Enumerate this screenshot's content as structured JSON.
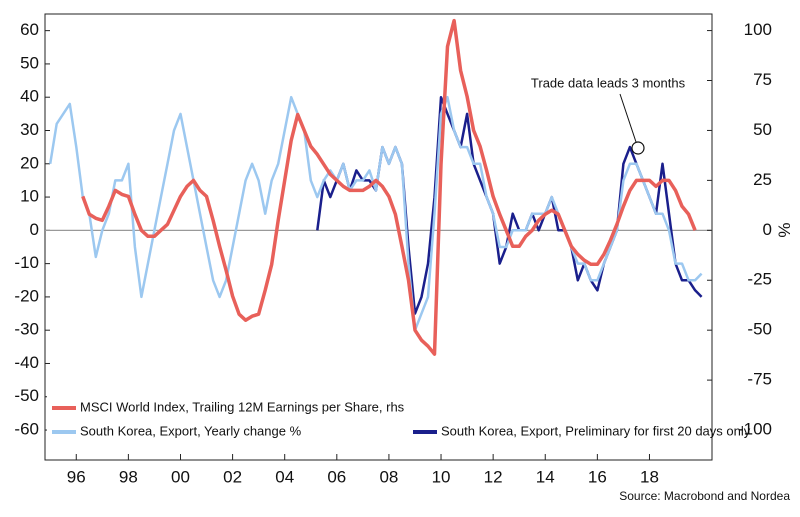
{
  "chart_data": {
    "type": "line",
    "annotation": "Trade data leads 3 months",
    "source": "Source: Macrobond and Nordea",
    "y2_label": "%",
    "legend": "bottom-left",
    "xlim": [
      1994.8,
      2020.4
    ],
    "xticks": [
      {
        "value": 1996,
        "label": "96"
      },
      {
        "value": 1998,
        "label": "98"
      },
      {
        "value": 2000,
        "label": "00"
      },
      {
        "value": 2002,
        "label": "02"
      },
      {
        "value": 2004,
        "label": "04"
      },
      {
        "value": 2006,
        "label": "06"
      },
      {
        "value": 2008,
        "label": "08"
      },
      {
        "value": 2010,
        "label": "10"
      },
      {
        "value": 2012,
        "label": "12"
      },
      {
        "value": 2014,
        "label": "14"
      },
      {
        "value": 2016,
        "label": "16"
      },
      {
        "value": 2018,
        "label": "18"
      }
    ],
    "ylim": [
      -69,
      65
    ],
    "yticks": [
      60,
      50,
      40,
      30,
      20,
      10,
      0,
      -10,
      -20,
      -30,
      -40,
      -50,
      -60
    ],
    "y2lim": [
      -115,
      108.3
    ],
    "y2ticks": [
      100,
      75,
      50,
      25,
      0,
      -25,
      -50,
      -75,
      -100
    ],
    "x": [
      1995,
      1995.25,
      1995.5,
      1995.75,
      1996,
      1996.25,
      1996.5,
      1996.75,
      1997,
      1997.25,
      1997.5,
      1997.75,
      1998,
      1998.25,
      1998.5,
      1998.75,
      1999,
      1999.25,
      1999.5,
      1999.75,
      2000,
      2000.25,
      2000.5,
      2000.75,
      2001,
      2001.25,
      2001.5,
      2001.75,
      2002,
      2002.25,
      2002.5,
      2002.75,
      2003,
      2003.25,
      2003.5,
      2003.75,
      2004,
      2004.25,
      2004.5,
      2004.75,
      2005,
      2005.25,
      2005.5,
      2005.75,
      2006,
      2006.25,
      2006.5,
      2006.75,
      2007,
      2007.25,
      2007.5,
      2007.75,
      2008,
      2008.25,
      2008.5,
      2008.75,
      2009,
      2009.25,
      2009.5,
      2009.75,
      2010,
      2010.25,
      2010.5,
      2010.75,
      2011,
      2011.25,
      2011.5,
      2011.75,
      2012,
      2012.25,
      2012.5,
      2012.75,
      2013,
      2013.25,
      2013.5,
      2013.75,
      2014,
      2014.25,
      2014.5,
      2014.75,
      2015,
      2015.25,
      2015.5,
      2015.75,
      2016,
      2016.25,
      2016.5,
      2016.75,
      2017,
      2017.25,
      2017.5,
      2017.75,
      2018,
      2018.25,
      2018.5,
      2018.75,
      2019,
      2019.25,
      2019.5,
      2019.75,
      2020
    ],
    "series": [
      {
        "name": "South Korea, Export, Preliminary for first 20 days only",
        "color": "#1a1f8c",
        "values": [
          null,
          null,
          null,
          null,
          null,
          null,
          null,
          null,
          null,
          null,
          null,
          null,
          null,
          null,
          null,
          null,
          null,
          null,
          null,
          null,
          null,
          null,
          null,
          null,
          null,
          null,
          null,
          null,
          null,
          null,
          null,
          null,
          null,
          null,
          null,
          null,
          null,
          null,
          null,
          null,
          null,
          0,
          15,
          10,
          15,
          20,
          12,
          18,
          15,
          15,
          12,
          25,
          20,
          25,
          20,
          -5,
          -25,
          -20,
          -10,
          10,
          40,
          35,
          30,
          25,
          35,
          20,
          15,
          10,
          5,
          -10,
          -5,
          5,
          0,
          0,
          5,
          0,
          5,
          10,
          0,
          0,
          -5,
          -15,
          -10,
          -15,
          -18,
          -10,
          -5,
          0,
          20,
          25,
          20,
          15,
          10,
          5,
          20,
          5,
          -10,
          -15,
          -15,
          -18,
          -20
        ]
      },
      {
        "name": "South Korea, Export, Yearly change %",
        "color": "#9cc8f0",
        "values": [
          20,
          32,
          35,
          38,
          25,
          10,
          5,
          -8,
          0,
          5,
          15,
          15,
          20,
          -5,
          -20,
          -10,
          0,
          10,
          20,
          30,
          35,
          25,
          15,
          5,
          -5,
          -15,
          -20,
          -15,
          -5,
          5,
          15,
          20,
          15,
          5,
          15,
          20,
          30,
          40,
          35,
          30,
          15,
          10,
          15,
          18,
          15,
          20,
          12,
          15,
          15,
          18,
          12,
          25,
          20,
          25,
          20,
          -10,
          -30,
          -25,
          -20,
          5,
          35,
          40,
          30,
          25,
          25,
          20,
          20,
          10,
          5,
          -5,
          -5,
          0,
          0,
          0,
          5,
          5,
          5,
          10,
          5,
          0,
          -5,
          -10,
          -10,
          -15,
          -15,
          -10,
          -5,
          0,
          15,
          20,
          20,
          15,
          10,
          5,
          5,
          0,
          -10,
          -10,
          -15,
          -15,
          -13
        ]
      },
      {
        "name": "MSCI World Index, Trailing 12M Earnings per Share, rhs",
        "color": "#e8605a",
        "axis": "y2",
        "values": [
          null,
          null,
          null,
          null,
          null,
          17,
          8,
          6,
          5,
          12,
          20,
          18,
          17,
          8,
          0,
          -3,
          -3,
          0,
          3,
          10,
          17,
          22,
          25,
          20,
          17,
          5,
          -8,
          -20,
          -33,
          -42,
          -45,
          -43,
          -42,
          -30,
          -17,
          5,
          25,
          45,
          58,
          50,
          42,
          38,
          33,
          28,
          25,
          22,
          20,
          20,
          20,
          22,
          25,
          22,
          17,
          8,
          -8,
          -25,
          -50,
          -55,
          -58,
          -62,
          33,
          92,
          105,
          80,
          67,
          50,
          42,
          30,
          17,
          8,
          0,
          -8,
          -8,
          -3,
          0,
          5,
          8,
          10,
          8,
          0,
          -8,
          -12,
          -15,
          -17,
          -17,
          -12,
          -5,
          3,
          12,
          20,
          25,
          25,
          25,
          22,
          25,
          25,
          20,
          12,
          8,
          0,
          null
        ]
      }
    ]
  }
}
